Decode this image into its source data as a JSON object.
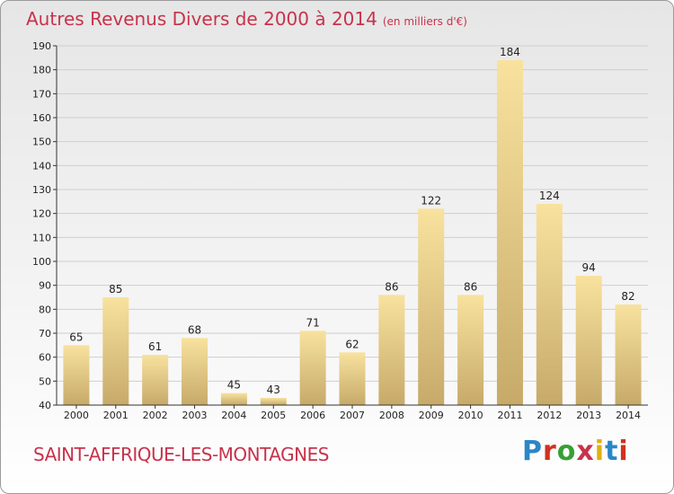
{
  "header": {
    "title": "Autres Revenus Divers de 2000 à 2014",
    "unit": "(en milliers d'€)"
  },
  "footer": {
    "place": "SAINT-AFFRIQUE-LES-MONTAGNES",
    "logo": {
      "text": "Proxiti",
      "letter_colors": [
        "#2a86c8",
        "#d0321e",
        "#36a033",
        "#c8324b",
        "#e0b011",
        "#2a86c8",
        "#d0321e"
      ]
    }
  },
  "colors": {
    "title": "#c8324b",
    "bar_light": "#f8e29e",
    "bar_dark": "#c7aa6a",
    "grid": "#cfcfcf",
    "axis": "#333333",
    "text": "#222222"
  },
  "chart_data": {
    "type": "bar",
    "title": "Autres Revenus Divers de 2000 à 2014",
    "subtitle": "(en milliers d'€)",
    "xlabel": "",
    "ylabel": "",
    "categories": [
      "2000",
      "2001",
      "2002",
      "2003",
      "2004",
      "2005",
      "2006",
      "2007",
      "2008",
      "2009",
      "2010",
      "2011",
      "2012",
      "2013",
      "2014"
    ],
    "values": [
      65,
      85,
      61,
      68,
      45,
      43,
      71,
      62,
      86,
      122,
      86,
      184,
      124,
      94,
      82
    ],
    "ylim": [
      40,
      190
    ],
    "yticks": [
      40,
      50,
      60,
      70,
      80,
      90,
      100,
      110,
      120,
      130,
      140,
      150,
      160,
      170,
      180,
      190
    ],
    "grid": true,
    "data_labels": true,
    "legend": "none"
  }
}
